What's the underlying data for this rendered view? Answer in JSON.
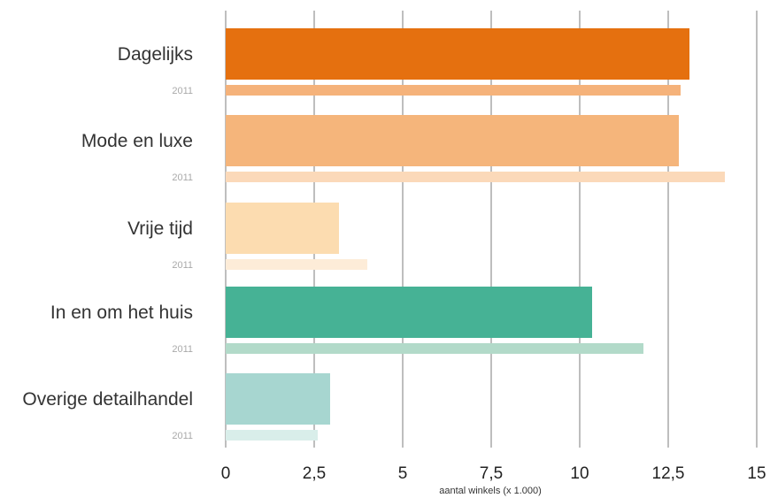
{
  "chart_data": {
    "type": "bar",
    "orientation": "horizontal",
    "xlabel": "aantal winkels (x 1.000)",
    "xlim": [
      0,
      15
    ],
    "x_ticks": [
      {
        "value": 0,
        "label": "0"
      },
      {
        "value": 2.5,
        "label": "2,5"
      },
      {
        "value": 5,
        "label": "5"
      },
      {
        "value": 7.5,
        "label": "7,5"
      },
      {
        "value": 10,
        "label": "10"
      },
      {
        "value": 12.5,
        "label": "12,5"
      },
      {
        "value": 15,
        "label": "15"
      }
    ],
    "grid": true,
    "comparison_label": "2011",
    "categories": [
      {
        "label": "Dagelijks",
        "value": 13.1,
        "value_2011": 12.85,
        "color": "#e5700f",
        "color_2011": "#f5b27a"
      },
      {
        "label": "Mode en luxe",
        "value": 12.8,
        "value_2011": 14.1,
        "color": "#f5b57b",
        "color_2011": "#fbd9b9"
      },
      {
        "label": "Vrije tijd",
        "value": 3.2,
        "value_2011": 4.0,
        "color": "#fcdcb0",
        "color_2011": "#fdecd8"
      },
      {
        "label": "In en om het huis",
        "value": 10.35,
        "value_2011": 11.8,
        "color": "#46b295",
        "color_2011": "#b2dac9"
      },
      {
        "label": "Overige detailhandel",
        "value": 2.95,
        "value_2011": 2.6,
        "color": "#a7d6d0",
        "color_2011": "#d9eeea"
      }
    ]
  }
}
